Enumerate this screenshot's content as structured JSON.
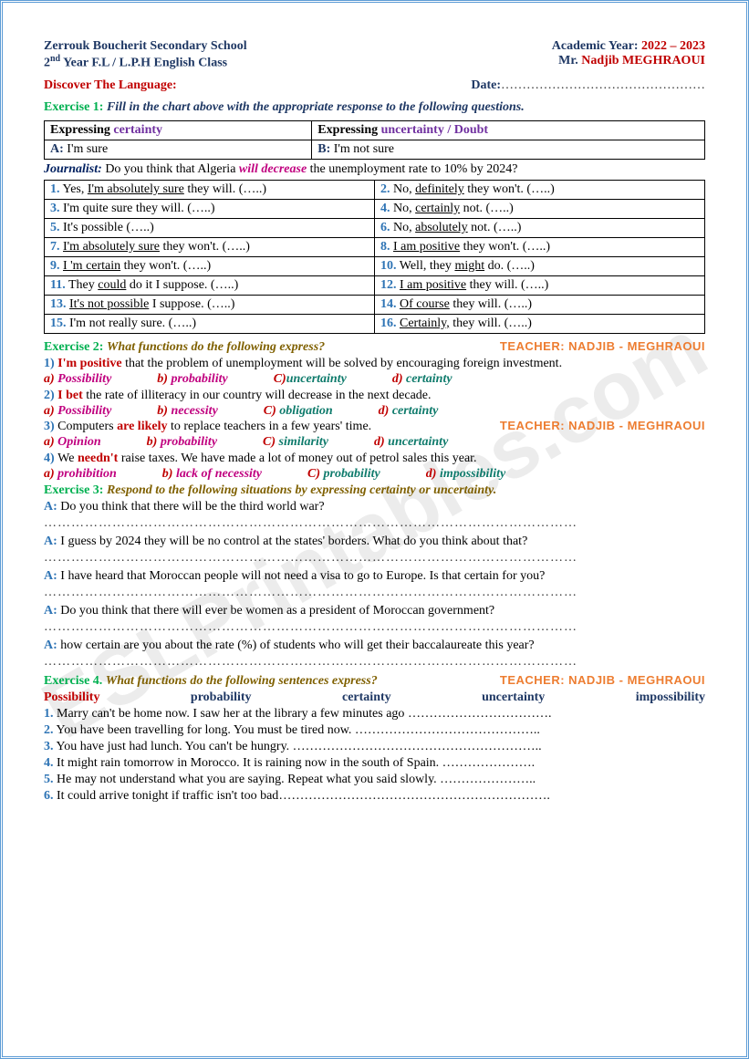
{
  "header": {
    "school": "Zerrouk Boucherit Secondary School",
    "year_label": "Academic Year: ",
    "year_value": "2022 – 2023",
    "class_prefix": "2",
    "class_sup": "nd",
    "class_rest": " Year F.L / L.P.H English Class",
    "teacher_prefix": "Mr. ",
    "teacher_name": "Nadjib MEGHRAOUI"
  },
  "discover": {
    "label": "Discover The Language:",
    "date_label": "Date:",
    "date_dots": "…………………………………………"
  },
  "ex1": {
    "title": "Exercise 1:",
    "instr": "  Fill in the chart above with the appropriate response to the following questions.",
    "th_left_a": "Expressing ",
    "th_left_b": "certainty",
    "th_right_a": "Expressing ",
    "th_right_b": "uncertainty  / Doubt",
    "row2_a": "A:   ",
    "row2_a_val": "I'm  sure",
    "row2_b": "B: ",
    "row2_b_val": "I'm not sure",
    "journalist_label": "Journalist:",
    "journalist_q1": " Do you think that Algeria ",
    "journalist_emph": "will decrease",
    "journalist_q2": " the unemployment rate to 10% by 2024?",
    "rows": [
      {
        "n": "1.",
        "a": "Yes, ",
        "u": "I'm absolutely sure",
        "b": " they will. (…..)",
        "n2": "2.",
        "a2": "No, ",
        "u2": "definitely",
        "b2": " they won't. (…..)"
      },
      {
        "n": "3.",
        "a": "I'm quite sure they will. (…..)",
        "u": "",
        "b": "",
        "n2": "4.",
        "a2": "No, ",
        "u2": "certainly",
        "b2": " not. (…..)"
      },
      {
        "n": "5.",
        "a": "It's possible (…..)",
        "u": "",
        "b": "",
        "n2": "6.",
        "a2": "No, ",
        "u2": "absolutely",
        "b2": " not. (…..)"
      },
      {
        "n": "7.",
        "a": "",
        "u": "I'm absolutely sure",
        "b": " they won't. (…..)",
        "n2": "8.",
        "a2": "",
        "u2": "I am positive",
        "b2": " they won't. (…..)"
      },
      {
        "n": "9.",
        "a": "",
        "u": "I 'm certain",
        "b": " they won't. (…..)",
        "n2": "10.",
        "a2": "Well, they ",
        "u2": "might",
        "b2": " do. (…..)"
      },
      {
        "n": "11.",
        "a": "They ",
        "u": "could",
        "b": " do it I suppose. (…..)",
        "n2": "12.",
        "a2": "",
        "u2": "I am positive",
        "b2": " they will. (…..)"
      },
      {
        "n": "13.",
        "a": "",
        "u": "It's not possible",
        "b": " I suppose. (…..)",
        "n2": "14.",
        "a2": "",
        "u2": "Of course",
        "b2": " they will. (…..)"
      },
      {
        "n": "15.",
        "a": "I'm not really sure. (…..)",
        "u": "",
        "b": "",
        "n2": "16.",
        "a2": "",
        "u2": "Certainly,",
        "b2": " they will. (…..)"
      }
    ]
  },
  "stamp": "TEACHER: NADJIB - MEGHRAOUI",
  "ex2": {
    "title": "Exercise 2:",
    "instr": " What functions do the following express?",
    "items": [
      {
        "n": "1) ",
        "emph": "I'm positive",
        "rest": " that the problem of unemployment will be solved by encouraging foreign investment.",
        "opts": [
          {
            "l": "a) ",
            "t": "Possibility",
            "c": "opt-m"
          },
          {
            "l": "b) ",
            "t": "probability",
            "c": "opt-m"
          },
          {
            "l": "C)",
            "t": "uncertainty",
            "c": "opt-teal"
          },
          {
            "l": "d)  ",
            "t": "certainty",
            "c": "opt-teal"
          }
        ]
      },
      {
        "n": "2) ",
        "emph": "I bet",
        "rest": " the rate of illiteracy in our country will decrease in the next decade.",
        "opts": [
          {
            "l": "a) ",
            "t": "Possibility",
            "c": "opt-m"
          },
          {
            "l": "b) ",
            "t": "necessity",
            "c": "opt-m"
          },
          {
            "l": "C) ",
            "t": "obligation",
            "c": "opt-teal"
          },
          {
            "l": "d)  ",
            "t": "certainty",
            "c": "opt-teal"
          }
        ]
      },
      {
        "n": "3) ",
        "emph_pre": "Computers ",
        "emph": "are likely",
        "rest": " to replace teachers in a few years' time.",
        "opts": [
          {
            "l": "a) ",
            "t": "Opinion",
            "c": "opt-m"
          },
          {
            "l": "b) ",
            "t": "probability",
            "c": "opt-m"
          },
          {
            "l": "C) ",
            "t": "similarity",
            "c": "opt-teal"
          },
          {
            "l": "d)  ",
            "t": "uncertainty",
            "c": "opt-teal"
          }
        ],
        "stamp": true
      },
      {
        "n": "4) ",
        "emph_pre": "We ",
        "emph": "needn't",
        "rest": " raise taxes. We have made a lot of money out of petrol sales this year.",
        "opts": [
          {
            "l": "a) ",
            "t": "prohibition",
            "c": "opt-m"
          },
          {
            "l": "b) ",
            "t": "lack of necessity",
            "c": "opt-m"
          },
          {
            "l": "C) ",
            "t": "probability",
            "c": "opt-teal"
          },
          {
            "l": "d)  ",
            "t": "impossibility",
            "c": "opt-teal"
          }
        ]
      }
    ]
  },
  "ex3": {
    "title": "Exercise 3:",
    "instr": " Respond to the following situations by expressing certainty or uncertainty.",
    "prompts": [
      "Do you think that there will be the third world war?",
      "I guess by 2024 they will be no control at the states' borders. What do you think about that?",
      "I have heard that Moroccan people will not need a visa to go to Europe. Is that certain for you?",
      "Do you think that there will ever be women as a president of Moroccan government?",
      "how certain are you about the rate (%) of students who will get their baccalaureate this year?"
    ],
    "dots": "………………………………………………………………………………………………………"
  },
  "ex4": {
    "title": "Exercise 4.",
    "instr": " What functions do the following sentences express?",
    "funcs": [
      "Possibility",
      "probability",
      "certainty",
      "uncertainty",
      "impossibility"
    ],
    "items": [
      {
        "n": "1.",
        "t": " Marry can't be home now. I saw her at the library a few minutes ago ",
        "d": "……………………………."
      },
      {
        "n": "2.",
        "t": " You have been travelling for long. You must be tired now. ",
        "d": "…………………………………….."
      },
      {
        "n": "3.",
        "t": " You have just had lunch. You can't be hungry.  ",
        "d": "………………………………………………….."
      },
      {
        "n": "4.",
        "t": " It might rain tomorrow in Morocco. It is raining now in the south of Spain. ",
        "d": "…………………."
      },
      {
        "n": "5.",
        "t": " He may not understand what you are saying. Repeat what you said slowly. ",
        "d": "………………….."
      },
      {
        "n": "6.",
        "t": " It could arrive tonight if traffic isn't too bad",
        "d": "………………………………………………………."
      }
    ]
  },
  "watermark": "ESLPrintables.com"
}
